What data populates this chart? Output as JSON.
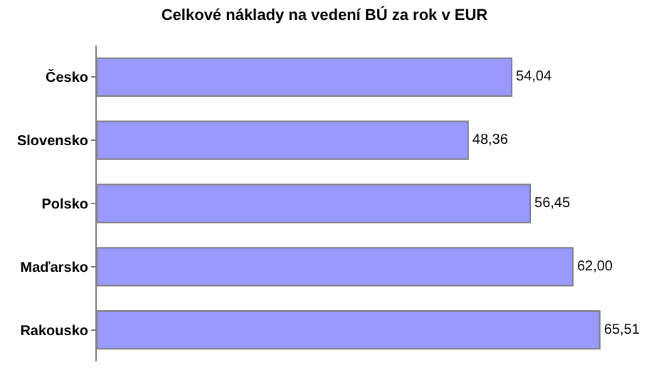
{
  "chart_data": {
    "type": "bar",
    "orientation": "horizontal",
    "title": "Celkové náklady na vedení BÚ za rok v EUR",
    "categories": [
      "Česko",
      "Slovensko",
      "Polsko",
      "Maďarsko",
      "Rakousko"
    ],
    "values": [
      54.04,
      48.36,
      56.45,
      62.0,
      65.51
    ],
    "value_labels": [
      "54,04",
      "48,36",
      "56,45",
      "62,00",
      "65,51"
    ],
    "color": "#9999ff",
    "tick_labels": "y",
    "legend": false
  }
}
